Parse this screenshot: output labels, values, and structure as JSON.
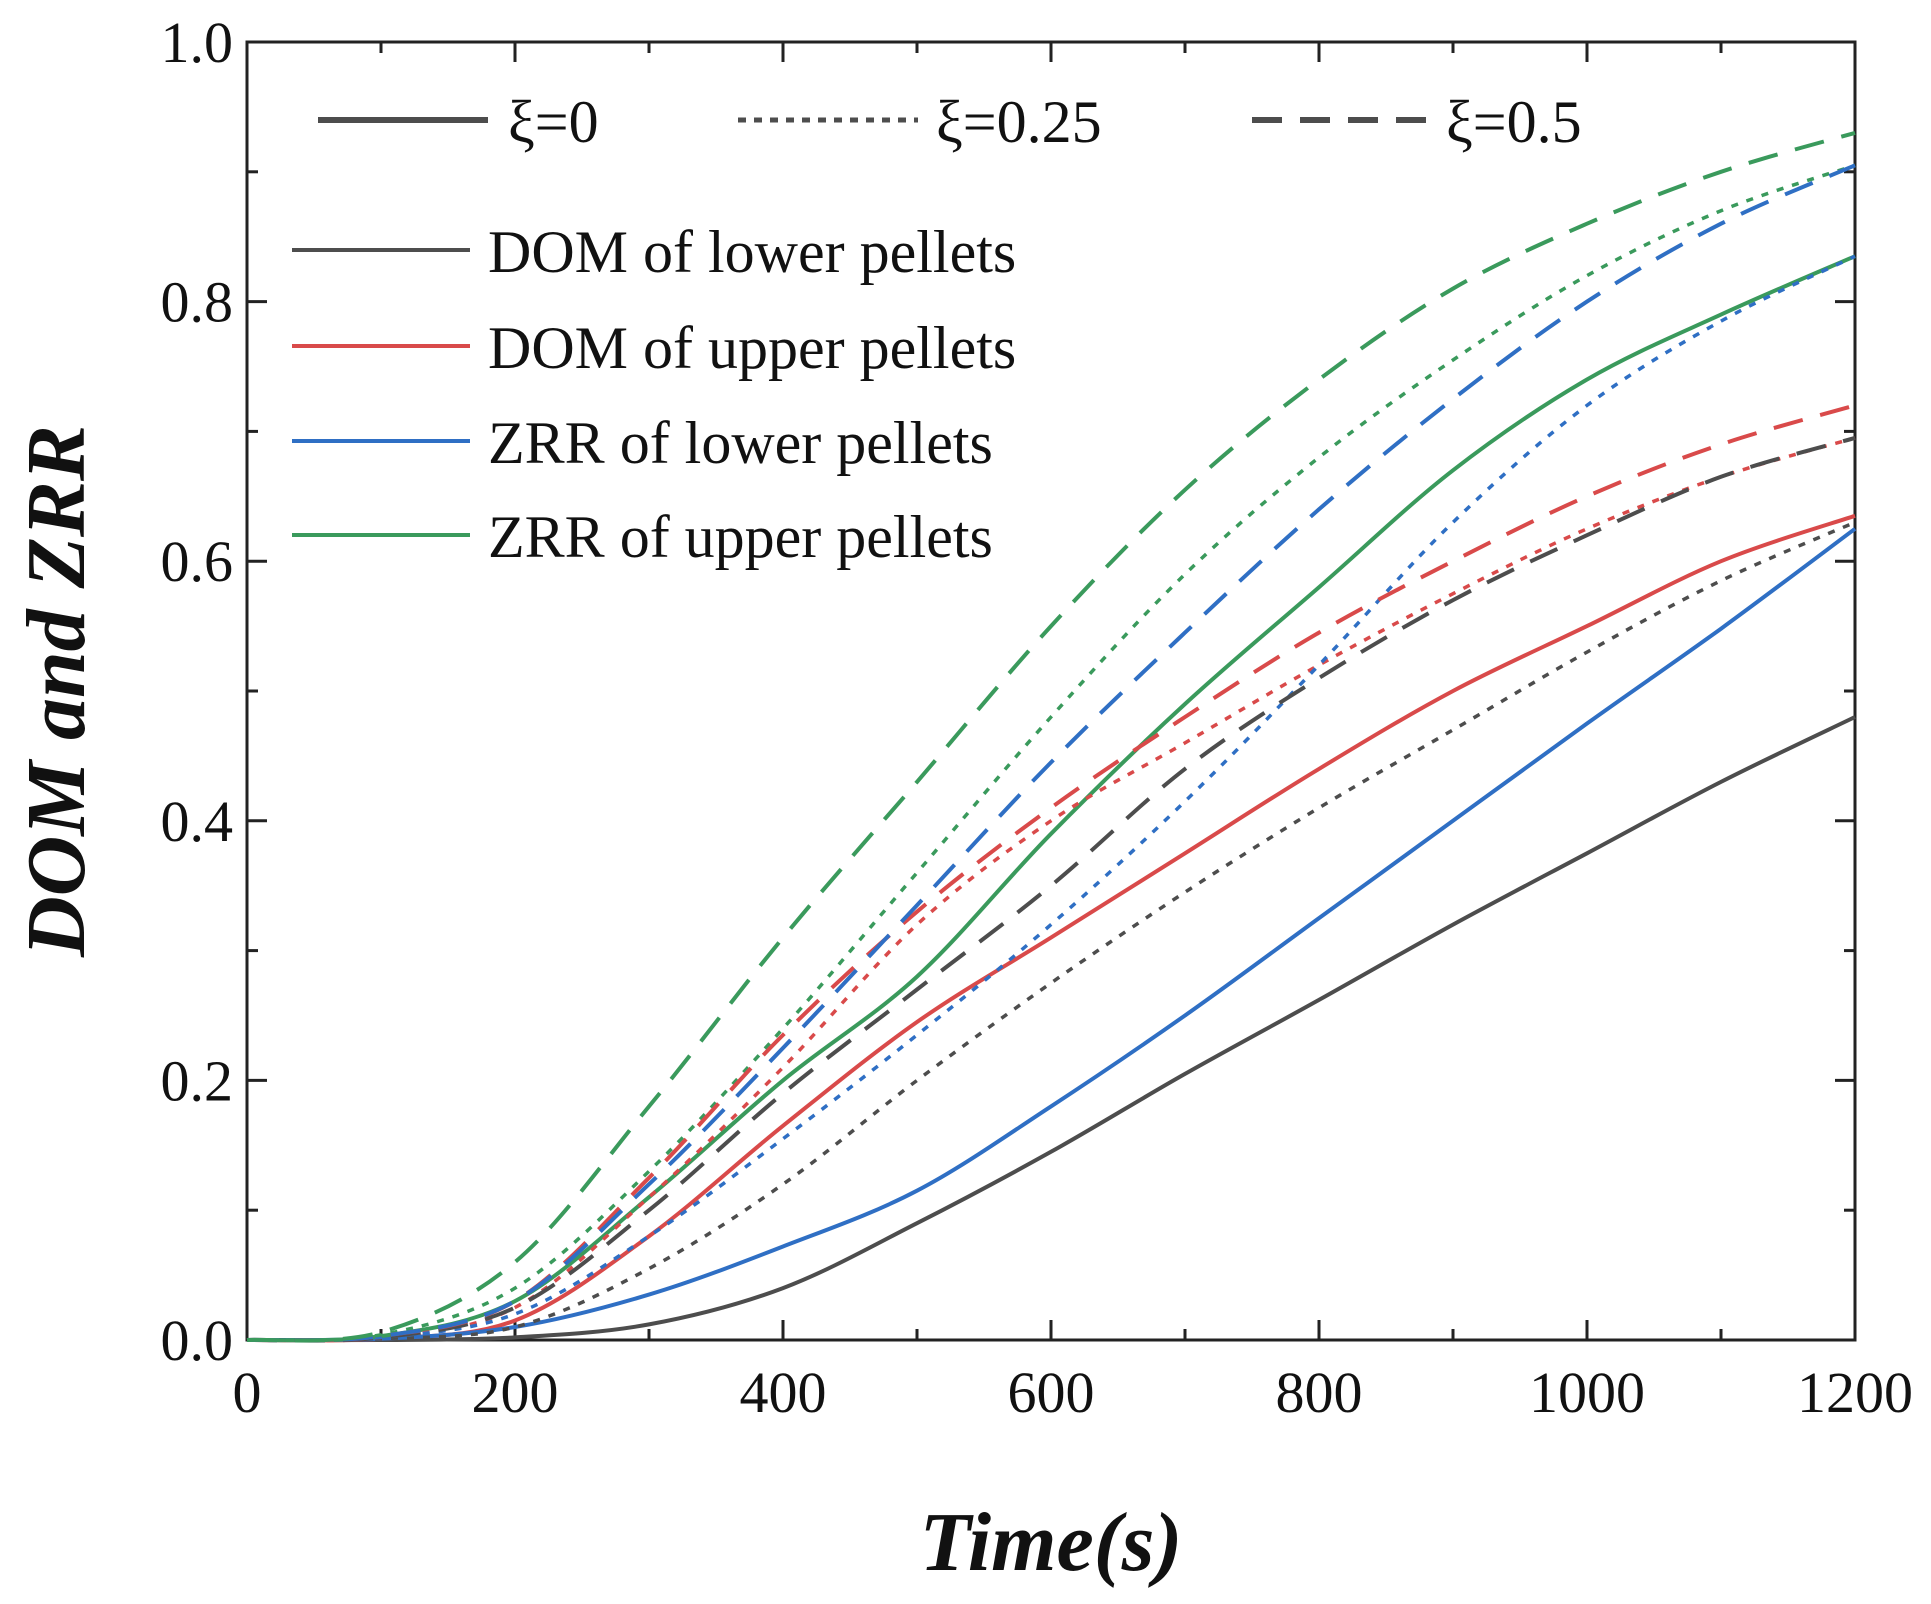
{
  "chart_data": {
    "type": "line",
    "title": "",
    "xlabel": "Time(s)",
    "ylabel": "DOM and ZRR",
    "xlim": [
      0,
      1200
    ],
    "ylim": [
      0,
      1.0
    ],
    "x_ticks": [
      "0",
      "200",
      "400",
      "600",
      "800",
      "1000",
      "1200"
    ],
    "y_ticks": [
      "0.0",
      "0.2",
      "0.4",
      "0.6",
      "0.8",
      "1.0"
    ],
    "grid": false,
    "legend_position": "top-left",
    "line_style_legend": [
      {
        "label": "ξ=0",
        "dash": "solid"
      },
      {
        "label": "ξ=0.25",
        "dash": "dotted"
      },
      {
        "label": "ξ=0.5",
        "dash": "dashed"
      }
    ],
    "color_legend": [
      {
        "label": "DOM of lower pellets",
        "color": "#4d4d4d"
      },
      {
        "label": "DOM of upper pellets",
        "color": "#d94a4a"
      },
      {
        "label": "ZRR of lower pellets",
        "color": "#2f6fc4"
      },
      {
        "label": "ZRR of upper pellets",
        "color": "#3a9a5c"
      }
    ],
    "x": [
      0,
      100,
      200,
      300,
      400,
      500,
      600,
      700,
      800,
      900,
      1000,
      1100,
      1200
    ],
    "series": [
      {
        "name": "DOM of lower pellets",
        "xi": "ξ=0",
        "color": "#4d4d4d",
        "dash": "solid",
        "values": [
          0,
          0,
          0.002,
          0.012,
          0.04,
          0.09,
          0.145,
          0.205,
          0.262,
          0.32,
          0.375,
          0.43,
          0.48
        ]
      },
      {
        "name": "DOM of upper pellets",
        "xi": "ξ=0",
        "color": "#d94a4a",
        "dash": "solid",
        "values": [
          0,
          0.001,
          0.015,
          0.08,
          0.165,
          0.245,
          0.31,
          0.375,
          0.44,
          0.5,
          0.55,
          0.6,
          0.635
        ]
      },
      {
        "name": "ZRR of lower pellets",
        "xi": "ξ=0",
        "color": "#2f6fc4",
        "dash": "solid",
        "values": [
          0,
          0.001,
          0.01,
          0.035,
          0.072,
          0.115,
          0.18,
          0.25,
          0.325,
          0.4,
          0.475,
          0.548,
          0.625
        ]
      },
      {
        "name": "ZRR of upper pellets",
        "xi": "ξ=0",
        "color": "#3a9a5c",
        "dash": "solid",
        "values": [
          0,
          0.003,
          0.03,
          0.11,
          0.2,
          0.28,
          0.39,
          0.49,
          0.58,
          0.67,
          0.74,
          0.79,
          0.835
        ]
      },
      {
        "name": "DOM of lower pellets",
        "xi": "ξ=0.25",
        "color": "#4d4d4d",
        "dash": "dotted",
        "values": [
          0,
          0.001,
          0.01,
          0.055,
          0.12,
          0.2,
          0.275,
          0.345,
          0.41,
          0.47,
          0.53,
          0.585,
          0.63
        ]
      },
      {
        "name": "DOM of upper pellets",
        "xi": "ξ=0.25",
        "color": "#d94a4a",
        "dash": "dotted",
        "values": [
          0,
          0.002,
          0.025,
          0.11,
          0.21,
          0.32,
          0.4,
          0.46,
          0.52,
          0.575,
          0.625,
          0.665,
          0.695
        ]
      },
      {
        "name": "ZRR of lower pellets",
        "xi": "ξ=0.25",
        "color": "#2f6fc4",
        "dash": "dotted",
        "values": [
          0,
          0.002,
          0.02,
          0.08,
          0.155,
          0.235,
          0.32,
          0.415,
          0.52,
          0.63,
          0.72,
          0.785,
          0.835
        ]
      },
      {
        "name": "ZRR of upper pellets",
        "xi": "ξ=0.25",
        "color": "#3a9a5c",
        "dash": "dotted",
        "values": [
          0,
          0.004,
          0.04,
          0.13,
          0.24,
          0.36,
          0.48,
          0.59,
          0.68,
          0.755,
          0.82,
          0.87,
          0.905
        ]
      },
      {
        "name": "DOM of lower pellets",
        "xi": "ξ=0.5",
        "color": "#4d4d4d",
        "dash": "dashed",
        "values": [
          0,
          0.002,
          0.025,
          0.1,
          0.19,
          0.27,
          0.35,
          0.44,
          0.51,
          0.57,
          0.62,
          0.665,
          0.695
        ]
      },
      {
        "name": "DOM of upper pellets",
        "xi": "ξ=0.5",
        "color": "#d94a4a",
        "dash": "dashed",
        "values": [
          0,
          0.003,
          0.03,
          0.125,
          0.235,
          0.33,
          0.41,
          0.48,
          0.545,
          0.6,
          0.65,
          0.69,
          0.72
        ]
      },
      {
        "name": "ZRR of lower pellets",
        "xi": "ξ=0.5",
        "color": "#2f6fc4",
        "dash": "dashed",
        "values": [
          0,
          0.003,
          0.03,
          0.12,
          0.225,
          0.335,
          0.445,
          0.545,
          0.64,
          0.725,
          0.8,
          0.86,
          0.905
        ]
      },
      {
        "name": "ZRR of upper pellets",
        "xi": "ξ=0.5",
        "color": "#3a9a5c",
        "dash": "dashed",
        "values": [
          0,
          0.006,
          0.06,
          0.18,
          0.31,
          0.43,
          0.55,
          0.655,
          0.74,
          0.81,
          0.86,
          0.9,
          0.93
        ]
      }
    ]
  }
}
